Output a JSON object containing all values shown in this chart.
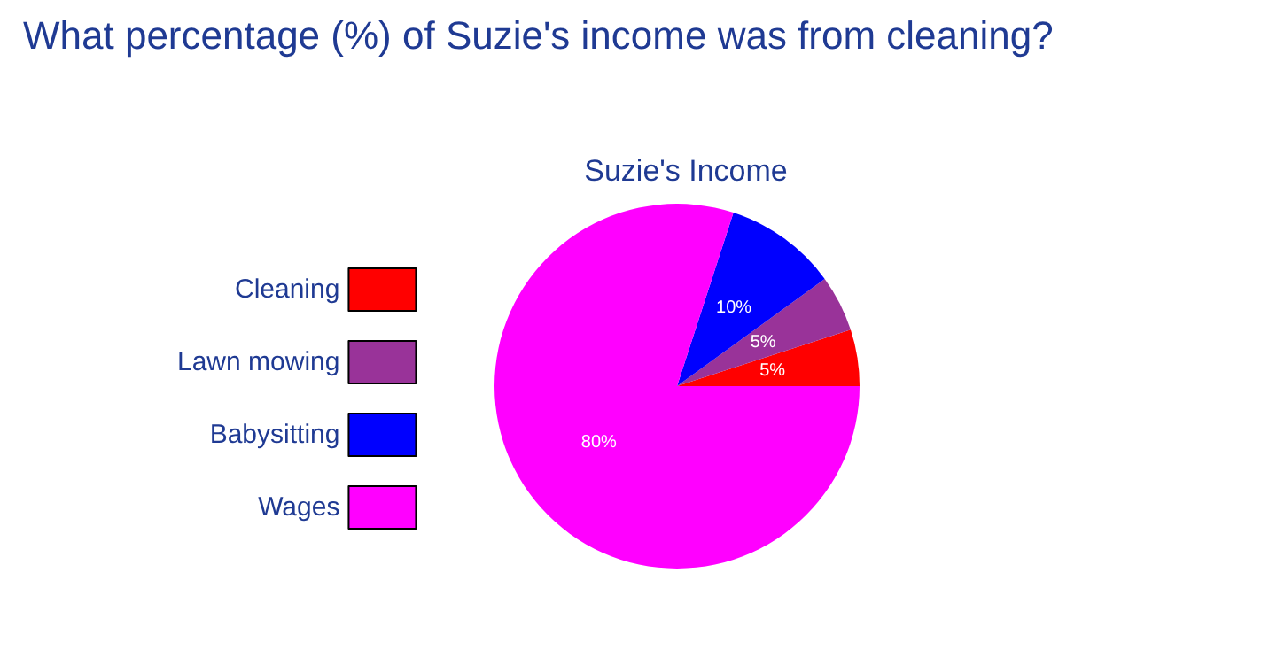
{
  "chart_data": {
    "type": "pie",
    "title": "What percentage (%) of Suzie's income was from cleaning?",
    "subtitle": "Suzie's Income",
    "categories": [
      "Cleaning",
      "Lawn mowing",
      "Babysitting",
      "Wages"
    ],
    "values": [
      5,
      5,
      10,
      80
    ],
    "colors": [
      "#ff0000",
      "#993399",
      "#0000ff",
      "#ff00ff"
    ],
    "value_labels": [
      "5%",
      "5%",
      "10%",
      "80%"
    ],
    "legend": "left"
  }
}
